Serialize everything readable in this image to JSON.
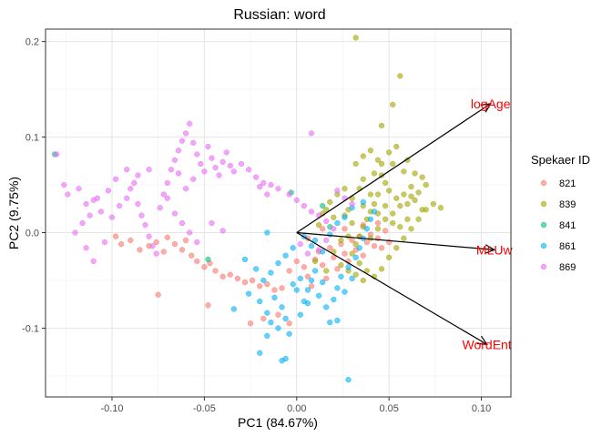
{
  "chart_data": {
    "type": "scatter",
    "title": "Russian: word",
    "xlabel": "PC1 (84.67%)",
    "ylabel": "PC2 (9.75%)",
    "xlim": [
      -0.136,
      0.116
    ],
    "ylim": [
      -0.172,
      0.213
    ],
    "xticks": [
      -0.1,
      -0.05,
      0.0,
      0.05,
      0.1
    ],
    "xtick_labels": [
      "-0.10",
      "-0.05",
      "0.00",
      "0.05",
      "0.10"
    ],
    "yticks": [
      -0.1,
      0.0,
      0.1,
      0.2
    ],
    "ytick_labels": [
      "-0.1",
      "0.0",
      "0.1",
      "0.2"
    ],
    "grid": true,
    "legend": {
      "title": "Spekaer ID",
      "placement": "right"
    },
    "series": [
      {
        "name": "821",
        "color": "#F8766D",
        "points": [
          [
            -0.098,
            -0.004
          ],
          [
            -0.095,
            -0.012
          ],
          [
            -0.09,
            -0.008
          ],
          [
            -0.085,
            -0.018
          ],
          [
            -0.08,
            -0.014
          ],
          [
            -0.076,
            -0.01
          ],
          [
            -0.072,
            -0.02
          ],
          [
            -0.07,
            -0.005
          ],
          [
            -0.066,
            -0.012
          ],
          [
            -0.062,
            -0.018
          ],
          [
            -0.06,
            -0.008
          ],
          [
            -0.057,
            -0.024
          ],
          [
            -0.054,
            -0.03
          ],
          [
            -0.05,
            -0.036
          ],
          [
            -0.047,
            -0.032
          ],
          [
            -0.044,
            -0.04
          ],
          [
            -0.04,
            -0.046
          ],
          [
            -0.036,
            -0.044
          ],
          [
            -0.032,
            -0.048
          ],
          [
            -0.028,
            -0.052
          ],
          [
            -0.024,
            -0.05
          ],
          [
            -0.02,
            -0.056
          ],
          [
            -0.016,
            -0.054
          ],
          [
            -0.012,
            -0.06
          ],
          [
            -0.008,
            -0.058
          ],
          [
            -0.004,
            -0.04
          ],
          [
            0.0,
            -0.03
          ],
          [
            0.004,
            -0.036
          ],
          [
            0.006,
            -0.046
          ],
          [
            0.008,
            -0.056
          ],
          [
            0.01,
            -0.028
          ],
          [
            0.012,
            -0.02
          ],
          [
            0.014,
            -0.034
          ],
          [
            0.016,
            -0.048
          ],
          [
            0.018,
            -0.016
          ],
          [
            0.02,
            -0.026
          ],
          [
            0.022,
            -0.038
          ],
          [
            0.024,
            -0.012
          ],
          [
            0.026,
            -0.022
          ],
          [
            0.028,
            -0.03
          ],
          [
            0.03,
            -0.008
          ],
          [
            0.032,
            -0.018
          ],
          [
            0.034,
            -0.004
          ],
          [
            0.036,
            -0.024
          ],
          [
            0.038,
            -0.01
          ],
          [
            0.04,
            -0.002
          ],
          [
            0.042,
            -0.014
          ],
          [
            0.044,
            -0.006
          ],
          [
            0.046,
            -0.016
          ],
          [
            0.048,
            0.002
          ],
          [
            0.05,
            -0.01
          ],
          [
            -0.01,
            -0.086
          ],
          [
            -0.018,
            -0.09
          ],
          [
            -0.025,
            -0.095
          ],
          [
            -0.075,
            -0.065
          ],
          [
            -0.048,
            -0.076
          ],
          [
            -0.004,
            -0.095
          ],
          [
            0.006,
            -0.006
          ],
          [
            0.014,
            0.004
          ],
          [
            0.026,
            0.004
          ],
          [
            0.036,
            0.008
          ],
          [
            0.044,
            0.01
          ]
        ]
      },
      {
        "name": "839",
        "color": "#A3A500",
        "points": [
          [
            0.032,
            0.204
          ],
          [
            0.056,
            0.164
          ],
          [
            0.052,
            0.134
          ],
          [
            0.046,
            0.112
          ],
          [
            0.05,
            0.084
          ],
          [
            0.054,
            0.09
          ],
          [
            0.044,
            0.076
          ],
          [
            0.04,
            0.086
          ],
          [
            0.036,
            0.08
          ],
          [
            0.032,
            0.072
          ],
          [
            0.052,
            0.072
          ],
          [
            0.06,
            0.076
          ],
          [
            0.058,
            0.064
          ],
          [
            0.064,
            0.062
          ],
          [
            0.068,
            0.058
          ],
          [
            0.07,
            0.05
          ],
          [
            0.066,
            0.042
          ],
          [
            0.062,
            0.038
          ],
          [
            0.06,
            0.03
          ],
          [
            0.056,
            0.028
          ],
          [
            0.054,
            0.036
          ],
          [
            0.05,
            0.044
          ],
          [
            0.048,
            0.052
          ],
          [
            0.046,
            0.06
          ],
          [
            0.044,
            0.04
          ],
          [
            0.042,
            0.03
          ],
          [
            0.04,
            0.022
          ],
          [
            0.038,
            0.014
          ],
          [
            0.036,
            0.006
          ],
          [
            0.034,
            -0.004
          ],
          [
            0.032,
            -0.012
          ],
          [
            0.03,
            -0.022
          ],
          [
            0.034,
            -0.032
          ],
          [
            0.038,
            -0.04
          ],
          [
            0.042,
            -0.046
          ],
          [
            0.046,
            -0.038
          ],
          [
            0.05,
            -0.026
          ],
          [
            0.054,
            -0.016
          ],
          [
            0.058,
            -0.006
          ],
          [
            0.062,
            0.004
          ],
          [
            0.066,
            0.014
          ],
          [
            0.07,
            0.024
          ],
          [
            0.074,
            0.03
          ],
          [
            0.078,
            0.026
          ],
          [
            0.06,
            0.014
          ],
          [
            0.056,
            0.006
          ],
          [
            0.052,
            0.02
          ],
          [
            0.048,
            0.014
          ],
          [
            0.044,
            0.004
          ],
          [
            0.04,
            -0.006
          ],
          [
            0.026,
            0.046
          ],
          [
            0.022,
            0.04
          ],
          [
            0.018,
            0.032
          ],
          [
            0.016,
            0.024
          ],
          [
            0.014,
            0.02
          ],
          [
            0.02,
            0.016
          ],
          [
            0.012,
            0.008
          ],
          [
            0.024,
            -0.008
          ],
          [
            0.028,
            -0.004
          ],
          [
            0.03,
            0.01
          ],
          [
            0.026,
            0.018
          ],
          [
            0.036,
            0.028
          ],
          [
            0.04,
            0.04
          ],
          [
            0.044,
            0.02
          ],
          [
            0.048,
            0.028
          ],
          [
            0.052,
            0.01
          ],
          [
            0.058,
            0.04
          ],
          [
            0.062,
            0.048
          ],
          [
            0.064,
            0.034
          ],
          [
            0.068,
            0.024
          ],
          [
            0.036,
            0.056
          ],
          [
            0.034,
            0.046
          ],
          [
            0.03,
            0.036
          ],
          [
            0.028,
            0.024
          ],
          [
            0.042,
            0.062
          ],
          [
            0.046,
            0.072
          ],
          [
            0.02,
            -0.02
          ],
          [
            0.024,
            -0.034
          ],
          [
            0.028,
            -0.04
          ],
          [
            0.032,
            -0.044
          ],
          [
            0.036,
            -0.05
          ],
          [
            0.016,
            -0.04
          ],
          [
            0.01,
            -0.03
          ]
        ]
      },
      {
        "name": "841",
        "color": "#00BF7D",
        "points": [
          [
            -0.131,
            0.082
          ],
          [
            -0.048,
            -0.028
          ],
          [
            -0.003,
            0.042
          ],
          [
            0.014,
            0.028
          ],
          [
            0.018,
            0.006
          ]
        ]
      },
      {
        "name": "861",
        "color": "#00B0F6",
        "points": [
          [
            -0.034,
            -0.08
          ],
          [
            -0.026,
            -0.064
          ],
          [
            -0.02,
            -0.072
          ],
          [
            -0.016,
            -0.084
          ],
          [
            -0.012,
            -0.068
          ],
          [
            -0.008,
            -0.078
          ],
          [
            -0.006,
            -0.09
          ],
          [
            -0.01,
            -0.1
          ],
          [
            -0.016,
            -0.108
          ],
          [
            -0.02,
            -0.126
          ],
          [
            -0.014,
            -0.094
          ],
          [
            -0.004,
            -0.106
          ],
          [
            0.002,
            -0.086
          ],
          [
            0.004,
            -0.072
          ],
          [
            0.006,
            -0.06
          ],
          [
            0.008,
            -0.05
          ],
          [
            0.01,
            -0.04
          ],
          [
            0.012,
            -0.066
          ],
          [
            0.014,
            -0.052
          ],
          [
            0.016,
            -0.078
          ],
          [
            0.018,
            -0.094
          ],
          [
            0.02,
            -0.07
          ],
          [
            0.022,
            -0.058
          ],
          [
            0.024,
            -0.046
          ],
          [
            0.026,
            -0.062
          ],
          [
            0.028,
            -0.036
          ],
          [
            0.03,
            -0.048
          ],
          [
            0.032,
            -0.026
          ],
          [
            0.034,
            -0.016
          ],
          [
            0.036,
            -0.006
          ],
          [
            0.038,
            0.004
          ],
          [
            0.04,
            0.014
          ],
          [
            0.042,
            0.022
          ],
          [
            0.036,
            0.032
          ],
          [
            0.03,
            0.026
          ],
          [
            0.026,
            0.016
          ],
          [
            0.022,
            0.01
          ],
          [
            0.018,
            -0.002
          ],
          [
            -0.006,
            -0.132
          ],
          [
            -0.008,
            -0.134
          ],
          [
            0.028,
            -0.154
          ],
          [
            -0.028,
            -0.028
          ],
          [
            -0.022,
            -0.038
          ],
          [
            -0.018,
            -0.05
          ],
          [
            -0.014,
            -0.042
          ],
          [
            -0.01,
            -0.032
          ],
          [
            -0.006,
            -0.024
          ],
          [
            -0.002,
            -0.016
          ],
          [
            -0.016,
            0.0
          ],
          [
            0.01,
            -0.008
          ],
          [
            0.014,
            -0.02
          ],
          [
            0.008,
            -0.014
          ],
          [
            0.004,
            -0.004
          ],
          [
            0.0,
            -0.06
          ],
          [
            0.006,
            -0.074
          ],
          [
            0.002,
            -0.048
          ],
          [
            -0.002,
            -0.054
          ],
          [
            0.022,
            -0.092
          ]
        ]
      },
      {
        "name": "869",
        "color": "#E76BF3",
        "points": [
          [
            -0.13,
            0.082
          ],
          [
            -0.126,
            0.05
          ],
          [
            -0.124,
            0.04
          ],
          [
            -0.118,
            0.046
          ],
          [
            -0.114,
            0.03
          ],
          [
            -0.11,
            0.034
          ],
          [
            -0.108,
            0.036
          ],
          [
            -0.106,
            0.022
          ],
          [
            -0.112,
            0.018
          ],
          [
            -0.116,
            0.01
          ],
          [
            -0.12,
            0.0
          ],
          [
            -0.114,
            -0.016
          ],
          [
            -0.11,
            -0.03
          ],
          [
            -0.104,
            -0.01
          ],
          [
            -0.1,
            0.016
          ],
          [
            -0.096,
            0.028
          ],
          [
            -0.092,
            0.036
          ],
          [
            -0.09,
            0.046
          ],
          [
            -0.088,
            0.052
          ],
          [
            -0.086,
            0.03
          ],
          [
            -0.084,
            0.018
          ],
          [
            -0.082,
            0.008
          ],
          [
            -0.08,
            -0.004
          ],
          [
            -0.078,
            -0.014
          ],
          [
            -0.076,
            -0.022
          ],
          [
            -0.074,
            0.026
          ],
          [
            -0.072,
            0.04
          ],
          [
            -0.07,
            0.052
          ],
          [
            -0.068,
            0.066
          ],
          [
            -0.066,
            0.076
          ],
          [
            -0.064,
            0.086
          ],
          [
            -0.062,
            0.096
          ],
          [
            -0.06,
            0.104
          ],
          [
            -0.058,
            0.114
          ],
          [
            -0.056,
            0.094
          ],
          [
            -0.054,
            0.082
          ],
          [
            -0.052,
            0.072
          ],
          [
            -0.05,
            0.064
          ],
          [
            -0.048,
            0.09
          ],
          [
            -0.046,
            0.078
          ],
          [
            -0.044,
            0.068
          ],
          [
            -0.042,
            0.06
          ],
          [
            -0.04,
            0.074
          ],
          [
            -0.038,
            0.084
          ],
          [
            -0.036,
            0.07
          ],
          [
            -0.034,
            0.064
          ],
          [
            -0.03,
            0.072
          ],
          [
            -0.026,
            0.066
          ],
          [
            -0.022,
            0.058
          ],
          [
            -0.018,
            0.052
          ],
          [
            -0.014,
            0.05
          ],
          [
            -0.01,
            0.046
          ],
          [
            -0.004,
            0.04
          ],
          [
            0.0,
            0.034
          ],
          [
            0.004,
            0.028
          ],
          [
            0.008,
            0.022
          ],
          [
            0.012,
            0.018
          ],
          [
            0.016,
            0.012
          ],
          [
            0.02,
            0.004
          ],
          [
            -0.092,
            0.066
          ],
          [
            -0.098,
            0.056
          ],
          [
            -0.102,
            0.044
          ],
          [
            -0.06,
            0.046
          ],
          [
            -0.056,
            0.056
          ],
          [
            -0.064,
            0.062
          ],
          [
            -0.07,
            0.036
          ],
          [
            -0.066,
            0.02
          ],
          [
            -0.062,
            0.01
          ],
          [
            -0.058,
            0.0
          ],
          [
            -0.054,
            -0.01
          ],
          [
            -0.02,
            0.048
          ],
          [
            -0.016,
            0.04
          ],
          [
            0.008,
            0.104
          ],
          [
            0.022,
            0.044
          ],
          [
            0.026,
            0.036
          ],
          [
            0.03,
            0.03
          ],
          [
            0.016,
            -0.008
          ],
          [
            0.012,
            -0.018
          ],
          [
            0.006,
            -0.022
          ],
          [
            0.002,
            -0.012
          ],
          [
            -0.046,
            0.01
          ],
          [
            -0.04,
            0.002
          ],
          [
            -0.08,
            0.066
          ],
          [
            -0.086,
            0.06
          ]
        ]
      }
    ],
    "vectors": [
      {
        "label": "logAge",
        "x": 0.105,
        "y": 0.135
      },
      {
        "label": "MLUw",
        "x": 0.107,
        "y": -0.018
      },
      {
        "label": "WordEnt",
        "x": 0.103,
        "y": -0.117
      }
    ],
    "vector_color": "#FF0000"
  }
}
